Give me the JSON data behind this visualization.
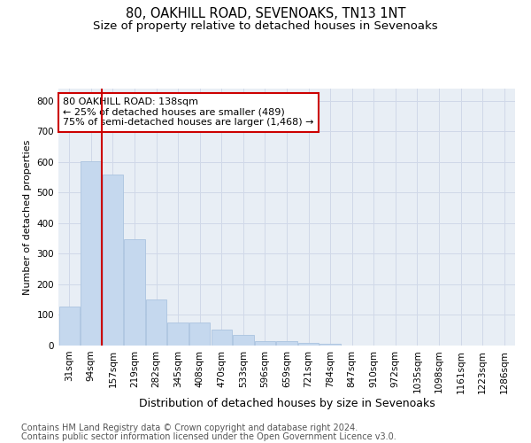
{
  "title": "80, OAKHILL ROAD, SEVENOAKS, TN13 1NT",
  "subtitle": "Size of property relative to detached houses in Sevenoaks",
  "xlabel": "Distribution of detached houses by size in Sevenoaks",
  "ylabel": "Number of detached properties",
  "categories": [
    "31sqm",
    "94sqm",
    "157sqm",
    "219sqm",
    "282sqm",
    "345sqm",
    "408sqm",
    "470sqm",
    "533sqm",
    "596sqm",
    "659sqm",
    "721sqm",
    "784sqm",
    "847sqm",
    "910sqm",
    "972sqm",
    "1035sqm",
    "1098sqm",
    "1161sqm",
    "1223sqm",
    "1286sqm"
  ],
  "values": [
    128,
    603,
    558,
    348,
    150,
    75,
    75,
    52,
    35,
    15,
    15,
    10,
    5,
    0,
    0,
    0,
    0,
    0,
    0,
    0,
    0
  ],
  "bar_color": "#c5d8ee",
  "bar_edge_color": "#aac4e0",
  "vline_x_idx": 1.5,
  "vline_color": "#cc0000",
  "annotation_text": "80 OAKHILL ROAD: 138sqm\n← 25% of detached houses are smaller (489)\n75% of semi-detached houses are larger (1,468) →",
  "annotation_box_color": "#ffffff",
  "annotation_box_edge": "#cc0000",
  "ylim": [
    0,
    840
  ],
  "yticks": [
    0,
    100,
    200,
    300,
    400,
    500,
    600,
    700,
    800
  ],
  "grid_color": "#d0d8e8",
  "bg_color": "#e8eef5",
  "footer_line1": "Contains HM Land Registry data © Crown copyright and database right 2024.",
  "footer_line2": "Contains public sector information licensed under the Open Government Licence v3.0.",
  "title_fontsize": 10.5,
  "subtitle_fontsize": 9.5,
  "xlabel_fontsize": 9,
  "ylabel_fontsize": 8,
  "tick_fontsize": 7.5,
  "footer_fontsize": 7
}
